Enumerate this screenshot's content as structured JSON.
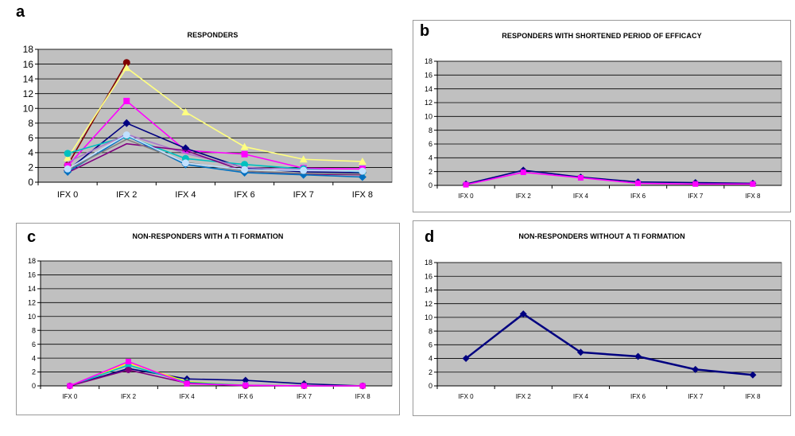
{
  "panels": {
    "a": {
      "letter": "a",
      "title": "RESPONDERS"
    },
    "b": {
      "letter": "b",
      "title": "RESPONDERS WITH SHORTENED PERIOD OF EFFICACY"
    },
    "c": {
      "letter": "c",
      "title": "NON-RESPONDERS  WITH A TI FORMATION"
    },
    "d": {
      "letter": "d",
      "title": "NON-RESPONDERS WITHOUT  A TI FORMATION"
    }
  },
  "colors": {
    "plot_bg": "#c0c0c0",
    "grid": "#000000"
  },
  "chart_data": [
    {
      "id": "a",
      "type": "line",
      "title": "RESPONDERS",
      "categories": [
        "IFX 0",
        "IFX 2",
        "IFX 4",
        "IFX 6",
        "IFX 7",
        "IFX 8"
      ],
      "ylim": [
        0,
        18
      ],
      "yticks": [
        0,
        2,
        4,
        6,
        8,
        10,
        12,
        14,
        16,
        18
      ],
      "grid": true,
      "series": [
        {
          "color": "#800000",
          "marker": "circle",
          "values": [
            2.3,
            16.2,
            null,
            null,
            null,
            null
          ]
        },
        {
          "color": "#ffff80",
          "marker": "triangle",
          "values": [
            3.3,
            15.5,
            9.5,
            4.8,
            3.1,
            2.8
          ]
        },
        {
          "color": "#ff00ff",
          "marker": "square",
          "values": [
            2.2,
            11.0,
            4.3,
            3.8,
            1.9,
            1.8
          ]
        },
        {
          "color": "#000080",
          "marker": "diamond",
          "values": [
            1.6,
            8.0,
            4.6,
            1.9,
            1.4,
            1.3
          ]
        },
        {
          "color": "#00c0c0",
          "marker": "circle",
          "values": [
            3.9,
            6.2,
            3.2,
            2.4,
            1.8,
            1.4
          ]
        },
        {
          "color": "#aa77cc",
          "marker": "none",
          "values": [
            2.7,
            6.5,
            3.9,
            2.0,
            1.7,
            1.5
          ]
        },
        {
          "color": "#800080",
          "marker": "none",
          "values": [
            1.3,
            5.2,
            4.3,
            1.5,
            1.1,
            1.0
          ]
        },
        {
          "color": "#0070c0",
          "marker": "diamond",
          "values": [
            1.4,
            6.3,
            2.4,
            1.3,
            1.0,
            0.7
          ]
        },
        {
          "color": "#808080",
          "marker": "none",
          "values": [
            1.7,
            5.8,
            2.7,
            1.5,
            1.2,
            1.1
          ]
        },
        {
          "color": "#c0e0ff",
          "marker": "circle",
          "values": [
            1.8,
            6.4,
            2.6,
            1.7,
            1.6,
            1.5
          ]
        }
      ]
    },
    {
      "id": "b",
      "type": "line",
      "title": "RESPONDERS WITH SHORTENED PERIOD OF EFFICACY",
      "categories": [
        "IFX 0",
        "IFX 2",
        "IFX 4",
        "IFX 6",
        "IFX 7",
        "IFX 8"
      ],
      "ylim": [
        0,
        18
      ],
      "yticks": [
        0,
        2,
        4,
        6,
        8,
        10,
        12,
        14,
        16,
        18
      ],
      "grid": true,
      "series": [
        {
          "color": "#000080",
          "marker": "diamond",
          "values": [
            0.2,
            2.2,
            1.2,
            0.5,
            0.4,
            0.3
          ]
        },
        {
          "color": "#ff00ff",
          "marker": "square",
          "values": [
            0.1,
            1.9,
            1.1,
            0.3,
            0.2,
            0.2
          ]
        }
      ]
    },
    {
      "id": "c",
      "type": "line",
      "title": "NON-RESPONDERS  WITH A TI FORMATION",
      "categories": [
        "IFX 0",
        "IFX 2",
        "IFX 4",
        "IFX 6",
        "IFX 7",
        "IFX 8"
      ],
      "ylim": [
        0,
        18
      ],
      "yticks": [
        0,
        2,
        4,
        6,
        8,
        10,
        12,
        14,
        16,
        18
      ],
      "grid": true,
      "series": [
        {
          "color": "#000080",
          "marker": "diamond",
          "values": [
            0,
            2.5,
            1.0,
            0.8,
            0.3,
            0
          ]
        },
        {
          "color": "#ffff00",
          "marker": "triangle",
          "values": [
            0,
            3.3,
            0.6,
            0.1,
            0,
            0
          ]
        },
        {
          "color": "#00c0c0",
          "marker": "circle",
          "values": [
            0,
            3.0,
            0.5,
            0.1,
            0,
            0
          ]
        },
        {
          "color": "#800080",
          "marker": "circle",
          "values": [
            0,
            2.3,
            0.4,
            0,
            0,
            0
          ]
        },
        {
          "color": "#ff00ff",
          "marker": "square",
          "values": [
            0,
            3.5,
            0.3,
            0.1,
            0,
            0
          ]
        }
      ]
    },
    {
      "id": "d",
      "type": "line",
      "title": "NON-RESPONDERS WITHOUT  A TI FORMATION",
      "categories": [
        "IFX 0",
        "IFX 2",
        "IFX 4",
        "IFX 6",
        "IFX 7",
        "IFX 8"
      ],
      "ylim": [
        0,
        18
      ],
      "yticks": [
        0,
        2,
        4,
        6,
        8,
        10,
        12,
        14,
        16,
        18
      ],
      "grid": true,
      "series": [
        {
          "color": "#000080",
          "marker": "diamond",
          "values": [
            4.0,
            10.5,
            4.9,
            4.3,
            2.4,
            1.6
          ]
        }
      ]
    }
  ]
}
